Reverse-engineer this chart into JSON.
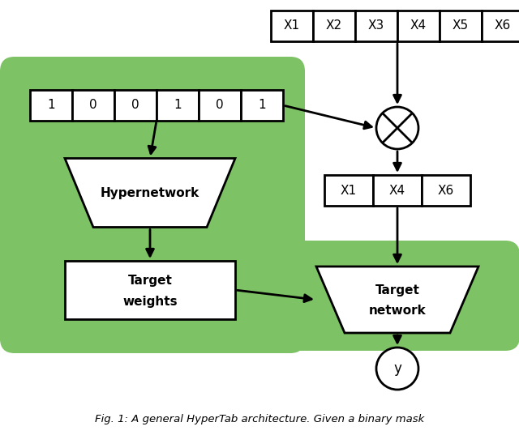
{
  "bg_color": "#ffffff",
  "green_color": "#7dc264",
  "box_color": "#ffffff",
  "box_edge_color": "#000000",
  "text_color": "#000000",
  "figsize": [
    6.4,
    5.37
  ],
  "dpi": 100,
  "top_labels": [
    "X1",
    "X2",
    "X3",
    "X4",
    "X5",
    "X6"
  ],
  "mask_labels": [
    "1",
    "0",
    "0",
    "1",
    "0",
    "1"
  ],
  "filt_labels": [
    "X1",
    "X4",
    "X6"
  ],
  "caption": "Fig. 1: A general HyperTab architecture. Given a binary mask"
}
